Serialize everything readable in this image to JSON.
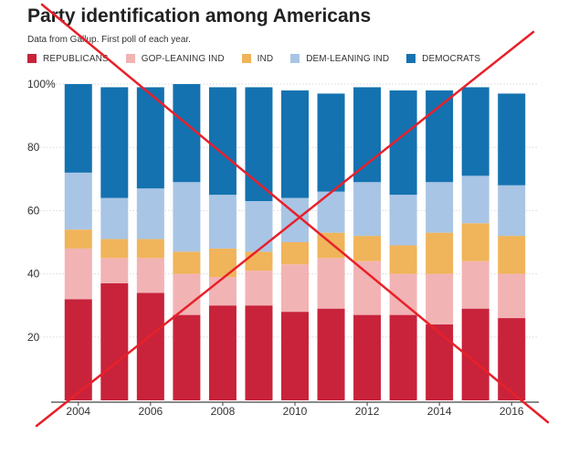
{
  "title": "Party identification among Americans",
  "subtitle": "Data from Gallup. First poll of each year.",
  "legend": [
    {
      "label": "REPUBLICANS",
      "color": "#c8233b"
    },
    {
      "label": "GOP-LEANING IND",
      "color": "#f2b3b4"
    },
    {
      "label": "IND",
      "color": "#f0b45a"
    },
    {
      "label": "DEM-LEANING IND",
      "color": "#a9c5e5"
    },
    {
      "label": "DEMOCRATS",
      "color": "#1472b0"
    }
  ],
  "overlay": {
    "name": "red-x-cross",
    "color": "#e8202a"
  },
  "chart_data": {
    "type": "bar",
    "stacked": true,
    "title": "Party identification among Americans",
    "subtitle": "Data from Gallup. First poll of each year.",
    "categories": [
      "2004",
      "2005",
      "2006",
      "2007",
      "2008",
      "2009",
      "2010",
      "2011",
      "2012",
      "2013",
      "2014",
      "2015",
      "2016"
    ],
    "x_tick_labels": [
      "2004",
      "2006",
      "2008",
      "2010",
      "2012",
      "2014",
      "2016"
    ],
    "y_tick_labels": [
      "100%",
      "80",
      "60",
      "40",
      "20"
    ],
    "y_ticks": [
      100,
      80,
      60,
      40,
      20
    ],
    "ylim": [
      0,
      100
    ],
    "grid": true,
    "legend_position": "top",
    "series": [
      {
        "name": "REPUBLICANS",
        "color": "#c8233b",
        "values": [
          32,
          37,
          34,
          27,
          30,
          30,
          28,
          29,
          27,
          27,
          24,
          29,
          26
        ]
      },
      {
        "name": "GOP-LEANING IND",
        "color": "#f2b3b4",
        "values": [
          16,
          8,
          11,
          13,
          9,
          11,
          15,
          16,
          17,
          13,
          16,
          15,
          14
        ]
      },
      {
        "name": "IND",
        "color": "#f0b45a",
        "values": [
          6,
          6,
          6,
          7,
          9,
          6,
          7,
          8,
          8,
          9,
          13,
          12,
          12
        ]
      },
      {
        "name": "DEM-LEANING IND",
        "color": "#a9c5e5",
        "values": [
          18,
          13,
          16,
          22,
          17,
          16,
          14,
          13,
          17,
          16,
          16,
          15,
          16
        ]
      },
      {
        "name": "DEMOCRATS",
        "color": "#1472b0",
        "values": [
          28,
          35,
          32,
          31,
          34,
          36,
          34,
          31,
          30,
          33,
          29,
          28,
          29
        ]
      }
    ]
  }
}
